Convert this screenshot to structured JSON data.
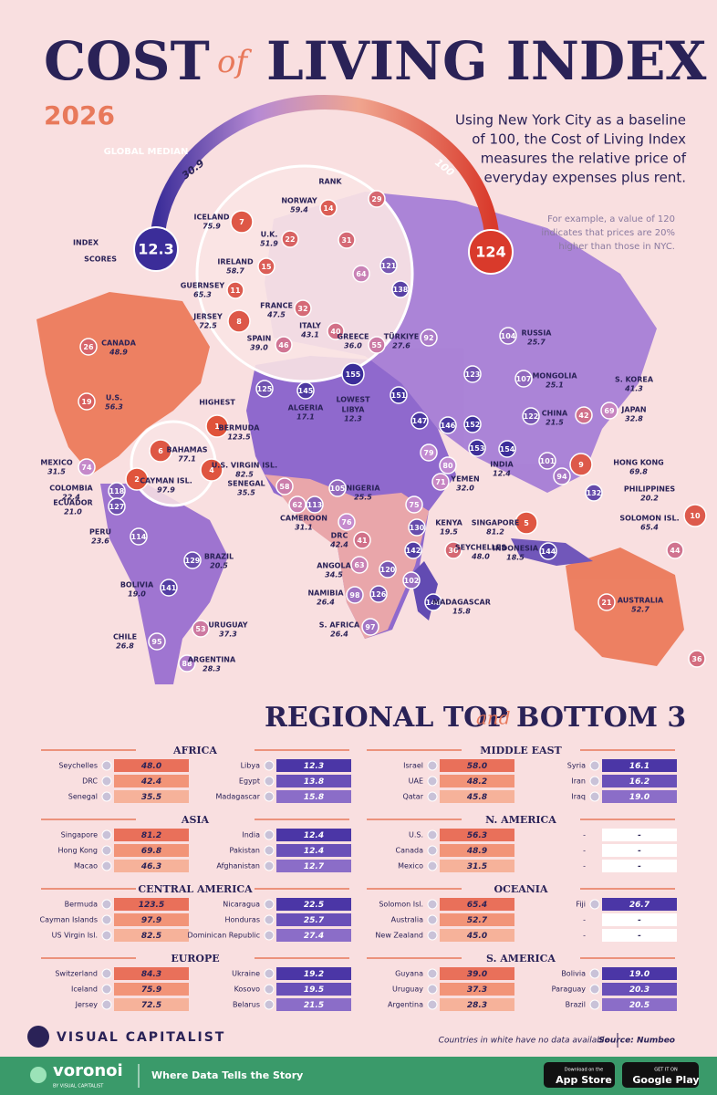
{
  "header": {
    "title_1": "COST",
    "title_of": "of",
    "title_2": "LIVING INDEX",
    "year": "2026",
    "description": [
      "Using New York City as a baseline",
      "of 100, the Cost of Living Index",
      "measures the relative price of",
      "everyday expenses plus rent."
    ],
    "note": [
      "For example, a value of 120",
      "indicates that prices are 20%",
      "higher than those in NYC."
    ]
  },
  "legend": {
    "index_scores": [
      "INDEX",
      "SCORES"
    ],
    "min": "12.3",
    "max": "124",
    "global_median": "GLOBAL MEDIAN",
    "median": "30.9",
    "baseline": "100",
    "rank": "RANK",
    "highest": "HIGHEST",
    "lowest": "LOWEST"
  },
  "map": {
    "labeled": [
      {
        "name": "ICELAND",
        "value": "75.9",
        "rank": 7
      },
      {
        "name": "U.K.",
        "value": "51.9",
        "rank": 22
      },
      {
        "name": "IRELAND",
        "value": "58.7",
        "rank": 15
      },
      {
        "name": "GUERNSEY",
        "value": "65.3",
        "rank": 11
      },
      {
        "name": "JERSEY",
        "value": "72.5",
        "rank": 8
      },
      {
        "name": "FRANCE",
        "value": "47.5",
        "rank": 32
      },
      {
        "name": "NORWAY",
        "value": "59.4",
        "rank": 14
      },
      {
        "name": "ITALY",
        "value": "43.1",
        "rank": 40
      },
      {
        "name": "SPAIN",
        "value": "39.0",
        "rank": 46
      },
      {
        "name": "GREECE",
        "value": "36.0",
        "rank": 55
      },
      {
        "name": "TÜRKIYE",
        "value": "27.6",
        "rank": 92
      },
      {
        "name": "RUSSIA",
        "value": "25.7",
        "rank": 104
      },
      {
        "name": "MONGOLIA",
        "value": "25.1",
        "rank": 107
      },
      {
        "name": "S. KOREA",
        "value": "41.3",
        "rank": 42
      },
      {
        "name": "JAPAN",
        "value": "32.8",
        "rank": 69
      },
      {
        "name": "CHINA",
        "value": "21.5",
        "rank": 122
      },
      {
        "name": "CANADA",
        "value": "48.9",
        "rank": 26
      },
      {
        "name": "U.S.",
        "value": "56.3",
        "rank": 19
      },
      {
        "name": "BERMUDA",
        "value": "123.5",
        "rank": 1
      },
      {
        "name": "BAHAMAS",
        "value": "77.1",
        "rank": 6
      },
      {
        "name": "U.S. VIRGIN ISL.",
        "value": "82.5",
        "rank": 4
      },
      {
        "name": "CAYMAN ISL.",
        "value": "97.9",
        "rank": 2
      },
      {
        "name": "MEXICO",
        "value": "31.5",
        "rank": 74
      },
      {
        "name": "ALGERIA",
        "value": "17.1",
        "rank": 145
      },
      {
        "name": "LIBYA",
        "value": "12.3",
        "rank": 155
      },
      {
        "name": "SENEGAL",
        "value": "35.5",
        "rank": 58
      },
      {
        "name": "NIGERIA",
        "value": "25.5",
        "rank": 105
      },
      {
        "name": "CAMEROON",
        "value": "31.1",
        "rank": 62
      },
      {
        "name": "DRC",
        "value": "42.4",
        "rank": 41
      },
      {
        "name": "ANGOLA",
        "value": "34.5",
        "rank": 63
      },
      {
        "name": "NAMIBIA",
        "value": "26.4",
        "rank": 98
      },
      {
        "name": "S. AFRICA",
        "value": "26.4",
        "rank": 97
      },
      {
        "name": "KENYA",
        "value": "19.5",
        "rank": 130
      },
      {
        "name": "MADAGASCAR",
        "value": "15.8",
        "rank": 148
      },
      {
        "name": "SEYCHELLES",
        "value": "48.0",
        "rank": 30
      },
      {
        "name": "YEMEN",
        "value": "32.0",
        "rank": 71
      },
      {
        "name": "INDIA",
        "value": "12.4",
        "rank": 154
      },
      {
        "name": "INDONESIA",
        "value": "18.5",
        "rank": 144
      },
      {
        "name": "SINGAPORE",
        "value": "81.2",
        "rank": 5
      },
      {
        "name": "HONG KONG",
        "value": "69.8",
        "rank": 9
      },
      {
        "name": "PHILIPPINES",
        "value": "20.2",
        "rank": 132
      },
      {
        "name": "SOLOMON ISL.",
        "value": "65.4",
        "rank": 10
      },
      {
        "name": "AUSTRALIA",
        "value": "52.7",
        "rank": 21
      },
      {
        "name": "COLOMBIA",
        "value": "22.4",
        "rank": 118
      },
      {
        "name": "ECUADOR",
        "value": "21.0",
        "rank": 127
      },
      {
        "name": "PERU",
        "value": "23.6",
        "rank": 114
      },
      {
        "name": "BOLIVIA",
        "value": "19.0",
        "rank": 141
      },
      {
        "name": "BRAZIL",
        "value": "20.5",
        "rank": 129
      },
      {
        "name": "URUGUAY",
        "value": "37.3",
        "rank": 53
      },
      {
        "name": "CHILE",
        "value": "26.8",
        "rank": 95
      },
      {
        "name": "ARGENTINA",
        "value": "28.3",
        "rank": 88
      }
    ],
    "ranks_only": [
      29,
      31,
      64,
      121,
      138,
      123,
      125,
      151,
      147,
      146,
      152,
      153,
      79,
      80,
      101,
      94,
      76,
      75,
      142,
      120,
      126,
      102,
      44,
      36,
      113
    ]
  },
  "regional": {
    "title_1": "REGIONAL TOP",
    "title_and": "and",
    "title_2": "BOTTOM 3",
    "regions": [
      {
        "name": "AFRICA",
        "top": [
          [
            "Seychelles",
            "48.0"
          ],
          [
            "DRC",
            "42.4"
          ],
          [
            "Senegal",
            "35.5"
          ]
        ],
        "bottom": [
          [
            "Libya",
            "12.3"
          ],
          [
            "Egypt",
            "13.8"
          ],
          [
            "Madagascar",
            "15.8"
          ]
        ]
      },
      {
        "name": "ASIA",
        "top": [
          [
            "Singapore",
            "81.2"
          ],
          [
            "Hong Kong",
            "69.8"
          ],
          [
            "Macao",
            "46.3"
          ]
        ],
        "bottom": [
          [
            "India",
            "12.4"
          ],
          [
            "Pakistan",
            "12.4"
          ],
          [
            "Afghanistan",
            "12.7"
          ]
        ]
      },
      {
        "name": "CENTRAL AMERICA",
        "top": [
          [
            "Bermuda",
            "123.5"
          ],
          [
            "Cayman Islands",
            "97.9"
          ],
          [
            "US Virgin Isl.",
            "82.5"
          ]
        ],
        "bottom": [
          [
            "Nicaragua",
            "22.5"
          ],
          [
            "Honduras",
            "25.7"
          ],
          [
            "Dominican Republic",
            "27.4"
          ]
        ]
      },
      {
        "name": "EUROPE",
        "top": [
          [
            "Switzerland",
            "84.3"
          ],
          [
            "Iceland",
            "75.9"
          ],
          [
            "Jersey",
            "72.5"
          ]
        ],
        "bottom": [
          [
            "Ukraine",
            "19.2"
          ],
          [
            "Kosovo",
            "19.5"
          ],
          [
            "Belarus",
            "21.5"
          ]
        ]
      },
      {
        "name": "MIDDLE EAST",
        "top": [
          [
            "Israel",
            "58.0"
          ],
          [
            "UAE",
            "48.2"
          ],
          [
            "Qatar",
            "45.8"
          ]
        ],
        "bottom": [
          [
            "Syria",
            "16.1"
          ],
          [
            "Iran",
            "16.2"
          ],
          [
            "Iraq",
            "19.0"
          ]
        ]
      },
      {
        "name": "N. AMERICA",
        "top": [
          [
            "U.S.",
            "56.3"
          ],
          [
            "Canada",
            "48.9"
          ],
          [
            "Mexico",
            "31.5"
          ]
        ],
        "bottom": [
          [
            "-",
            "-"
          ],
          [
            "-",
            "-"
          ],
          [
            "-",
            "-"
          ]
        ]
      },
      {
        "name": "OCEANIA",
        "top": [
          [
            "Solomon Isl.",
            "65.4"
          ],
          [
            "Australia",
            "52.7"
          ],
          [
            "New Zealand",
            "45.0"
          ]
        ],
        "bottom": [
          [
            "Fiji",
            "26.7"
          ],
          [
            "-",
            "-"
          ],
          [
            "-",
            "-"
          ]
        ]
      },
      {
        "name": "S. AMERICA",
        "top": [
          [
            "Guyana",
            "39.0"
          ],
          [
            "Uruguay",
            "37.3"
          ],
          [
            "Argentina",
            "28.3"
          ]
        ],
        "bottom": [
          [
            "Bolivia",
            "19.0"
          ],
          [
            "Paraguay",
            "20.3"
          ],
          [
            "Brazil",
            "20.5"
          ]
        ]
      }
    ]
  },
  "footer": {
    "brand": "VISUAL CAPITALIST",
    "note": "Countries in white have no data available",
    "source": "Source: Numbeo",
    "voronoi": "voronoi",
    "voronoi_sub": "BY VISUAL CAPITALIST",
    "tagline": "Where Data Tells the Story",
    "app_store_small": "Download on the",
    "app_store": "App Store",
    "google_small": "GET IT ON",
    "google": "Google Play"
  }
}
